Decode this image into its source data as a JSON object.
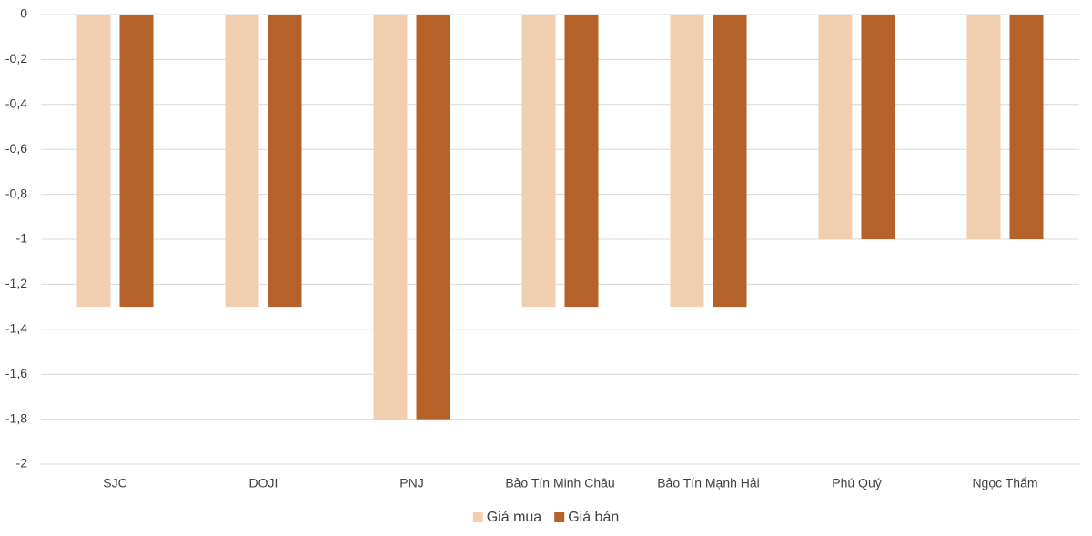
{
  "chart_data": {
    "type": "bar",
    "categories": [
      "SJC",
      "DOJI",
      "PNJ",
      "Bảo Tín Minh Châu",
      "Bảo Tín Mạnh Hải",
      "Phú Quý",
      "Ngọc Thẩm"
    ],
    "series": [
      {
        "name": "Giá mua",
        "color": "#f2ceb1",
        "values": [
          -1.3,
          -1.3,
          -1.8,
          -1.3,
          -1.3,
          -1,
          -1
        ]
      },
      {
        "name": "Giá bán",
        "color": "#b5612a",
        "values": [
          -1.3,
          -1.3,
          -1.8,
          -1.3,
          -1.3,
          -1,
          -1
        ]
      }
    ],
    "ylim": [
      -2,
      0
    ],
    "yticks": [
      0,
      {
        "value": -0.2,
        "label": "-0,2"
      },
      {
        "value": -0.4,
        "label": "-0,4"
      },
      {
        "value": -0.6,
        "label": "-0,6"
      },
      {
        "value": -0.8,
        "label": "-0,8"
      },
      -1,
      {
        "value": -1.2,
        "label": "-1,2"
      },
      {
        "value": -1.4,
        "label": "-1,4"
      },
      {
        "value": -1.6,
        "label": "-1,6"
      },
      {
        "value": -1.8,
        "label": "-1,8"
      },
      -2
    ],
    "grid": true,
    "legend": "bottom"
  }
}
